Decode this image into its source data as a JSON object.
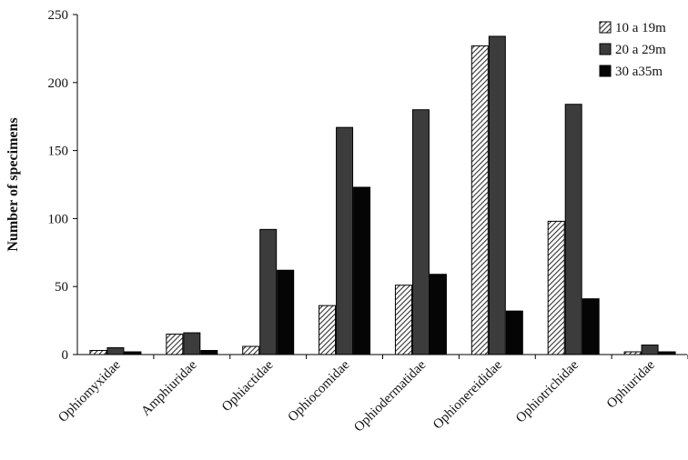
{
  "chart_data": {
    "type": "bar",
    "title": "",
    "xlabel": "",
    "ylabel": "Number of specimens",
    "ylim": [
      0,
      250
    ],
    "yticks": [
      0,
      50,
      100,
      150,
      200,
      250
    ],
    "grid": false,
    "legend_position": "top-right",
    "categories": [
      "Ophiomyxidae",
      "Amphiuridae",
      "Ophiactidae",
      "Ophiocomidae",
      "Ophiodermatidae",
      "Ophionereididae",
      "Ophiotrichidae",
      "Ophiuridae"
    ],
    "series": [
      {
        "name": "10 a 19m",
        "fill": "hatched",
        "color": "#3a3a3a",
        "values": [
          3,
          15,
          6,
          36,
          51,
          227,
          98,
          2
        ]
      },
      {
        "name": "20 a 29m",
        "fill": "solid",
        "color": "#3c3c3c",
        "values": [
          5,
          16,
          92,
          167,
          180,
          234,
          184,
          7
        ]
      },
      {
        "name": "30 a35m",
        "fill": "solid",
        "color": "#050505",
        "values": [
          2,
          3,
          62,
          123,
          59,
          32,
          41,
          2
        ]
      }
    ]
  }
}
